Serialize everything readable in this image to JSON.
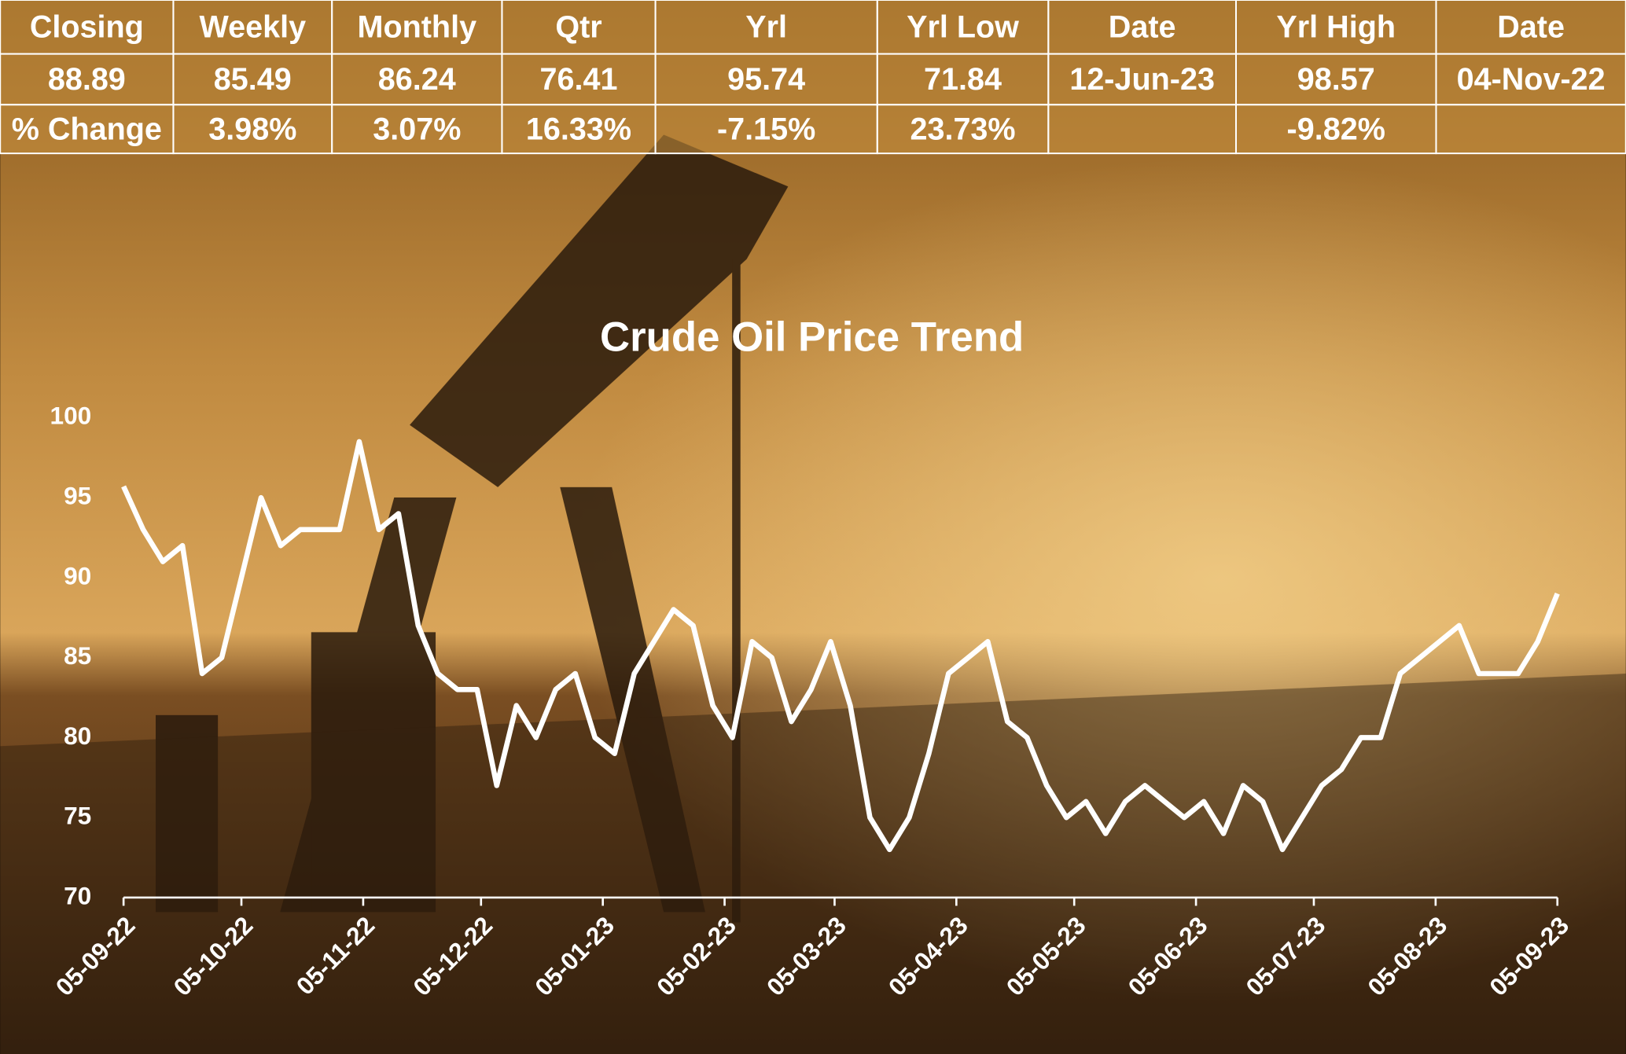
{
  "table": {
    "rows": [
      [
        "Closing",
        "Weekly",
        "Monthly",
        "Qtr",
        "Yrl",
        "Yrl Low",
        "Date",
        "Yrl High",
        "Date"
      ],
      [
        "88.89",
        "85.49",
        "86.24",
        "76.41",
        "95.74",
        "71.84",
        "12-Jun-23",
        "98.57",
        "04-Nov-22"
      ],
      [
        "% Change",
        "3.98%",
        "3.07%",
        "16.33%",
        "-7.15%",
        "23.73%",
        null,
        "-9.82%",
        null
      ]
    ]
  },
  "chart_data": {
    "type": "line",
    "title": "Crude Oil Price Trend",
    "x": [
      "2022-09-05",
      "2022-09-10",
      "2022-09-15",
      "2022-09-20",
      "2022-09-25",
      "2022-09-30",
      "2022-10-05",
      "2022-10-10",
      "2022-10-15",
      "2022-10-20",
      "2022-10-25",
      "2022-10-30",
      "2022-11-04",
      "2022-11-09",
      "2022-11-14",
      "2022-11-19",
      "2022-11-24",
      "2022-11-29",
      "2022-12-04",
      "2022-12-09",
      "2022-12-14",
      "2022-12-19",
      "2022-12-24",
      "2022-12-29",
      "2023-01-03",
      "2023-01-08",
      "2023-01-13",
      "2023-01-18",
      "2023-01-23",
      "2023-01-28",
      "2023-02-02",
      "2023-02-07",
      "2023-02-12",
      "2023-02-17",
      "2023-02-22",
      "2023-02-27",
      "2023-03-04",
      "2023-03-09",
      "2023-03-14",
      "2023-03-19",
      "2023-03-24",
      "2023-03-29",
      "2023-04-03",
      "2023-04-08",
      "2023-04-13",
      "2023-04-18",
      "2023-04-23",
      "2023-04-28",
      "2023-05-03",
      "2023-05-08",
      "2023-05-13",
      "2023-05-18",
      "2023-05-23",
      "2023-05-28",
      "2023-06-02",
      "2023-06-07",
      "2023-06-12",
      "2023-06-17",
      "2023-06-22",
      "2023-06-27",
      "2023-07-02",
      "2023-07-07",
      "2023-07-12",
      "2023-07-17",
      "2023-07-22",
      "2023-07-27",
      "2023-08-01",
      "2023-08-06",
      "2023-08-11",
      "2023-08-16",
      "2023-08-21",
      "2023-08-26",
      "2023-08-31",
      "2023-09-05"
    ],
    "series": [
      {
        "name": "Crude Oil",
        "color": "#ffffff",
        "values": [
          95.7,
          93,
          91,
          92,
          84,
          85,
          90,
          95,
          92,
          93,
          93,
          93,
          98.5,
          93,
          94,
          87,
          84,
          83,
          83,
          77,
          82,
          80,
          83,
          84,
          80,
          79,
          84,
          86,
          88,
          87,
          82,
          80,
          86,
          85,
          81,
          83,
          86,
          82,
          75,
          73,
          75,
          79,
          84,
          85,
          86,
          81,
          80,
          77,
          75,
          76,
          74,
          76,
          77,
          76,
          75,
          76,
          74,
          77,
          76,
          73,
          75,
          77,
          78,
          80,
          80,
          84,
          85,
          86,
          87,
          84,
          84,
          84,
          86,
          89
        ]
      }
    ],
    "ylim": [
      70,
      100
    ],
    "yticks": [
      70,
      75,
      80,
      85,
      90,
      95,
      100
    ],
    "xlim": [
      "2022-09-05",
      "2023-09-05"
    ],
    "xticks": [
      {
        "value": "2022-09-05",
        "label": "05-09-22"
      },
      {
        "value": "2022-10-05",
        "label": "05-10-22"
      },
      {
        "value": "2022-11-05",
        "label": "05-11-22"
      },
      {
        "value": "2022-12-05",
        "label": "05-12-22"
      },
      {
        "value": "2023-01-05",
        "label": "05-01-23"
      },
      {
        "value": "2023-02-05",
        "label": "05-02-23"
      },
      {
        "value": "2023-03-05",
        "label": "05-03-23"
      },
      {
        "value": "2023-04-05",
        "label": "05-04-23"
      },
      {
        "value": "2023-05-05",
        "label": "05-05-23"
      },
      {
        "value": "2023-06-05",
        "label": "05-06-23"
      },
      {
        "value": "2023-07-05",
        "label": "05-07-23"
      },
      {
        "value": "2023-08-05",
        "label": "05-08-23"
      },
      {
        "value": "2023-09-05",
        "label": "05-09-23"
      }
    ],
    "grid": false
  }
}
